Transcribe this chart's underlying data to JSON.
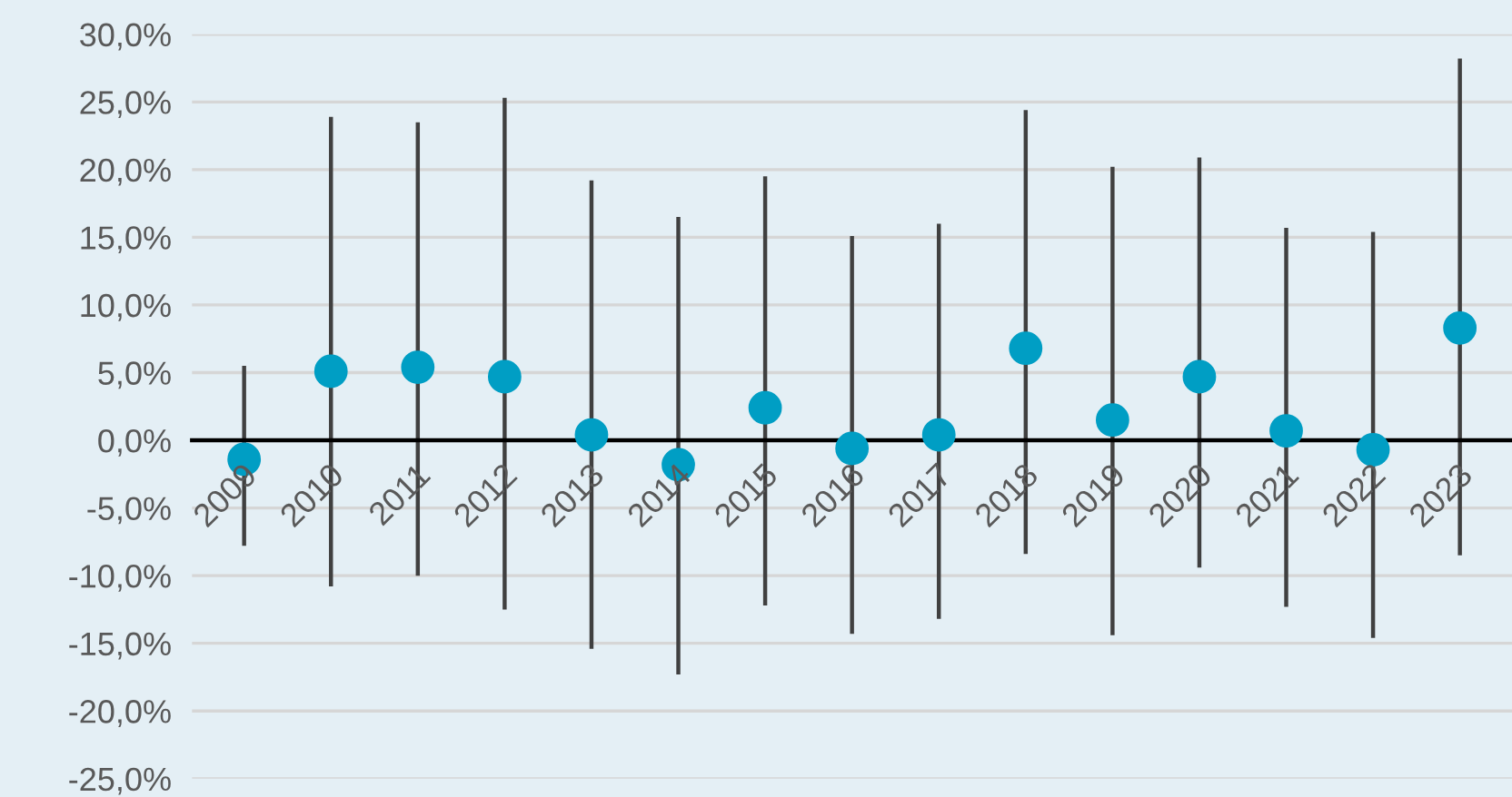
{
  "chart_data": {
    "type": "scatter",
    "categories": [
      "2009",
      "2010",
      "2011",
      "2012",
      "2013",
      "2014",
      "2015",
      "2016",
      "2017",
      "2018",
      "2019",
      "2020",
      "2021",
      "2022",
      "2023"
    ],
    "series": [
      {
        "color": "#009ec4",
        "values": [
          -1.4,
          5.1,
          5.4,
          4.7,
          0.4,
          -1.8,
          2.4,
          -0.6,
          0.4,
          6.8,
          1.5,
          4.7,
          0.7,
          -0.7,
          8.3
        ],
        "errors": [
          [
            -7.8,
            5.5
          ],
          [
            -10.8,
            23.9
          ],
          [
            -10.0,
            23.5
          ],
          [
            -12.5,
            25.3
          ],
          [
            -15.4,
            19.2
          ],
          [
            -17.3,
            16.5
          ],
          [
            -12.2,
            19.5
          ],
          [
            -14.3,
            15.1
          ],
          [
            -13.2,
            16.0
          ],
          [
            -8.4,
            24.4
          ],
          [
            -14.4,
            20.2
          ],
          [
            -9.4,
            20.9
          ],
          [
            -12.3,
            15.7
          ],
          [
            -14.6,
            15.4
          ],
          [
            -8.5,
            28.2
          ]
        ]
      }
    ],
    "ylim": [
      -25,
      30
    ],
    "yticks": [
      {
        "value": -25,
        "label": "-25,0%"
      },
      {
        "value": -20,
        "label": "-20,0%"
      },
      {
        "value": -15,
        "label": "-15,0%"
      },
      {
        "value": -10,
        "label": "-10,0%"
      },
      {
        "value": -5,
        "label": "-5,0%"
      },
      {
        "value": 0,
        "label": "0,0%"
      },
      {
        "value": 5,
        "label": "5,0%"
      },
      {
        "value": 10,
        "label": "10,0%"
      },
      {
        "value": 15,
        "label": "15,0%"
      },
      {
        "value": 20,
        "label": "20,0%"
      },
      {
        "value": 25,
        "label": "25,0%"
      },
      {
        "value": 30,
        "label": "30,0%"
      }
    ],
    "grid": "y",
    "marker": "circle",
    "legend": false
  }
}
